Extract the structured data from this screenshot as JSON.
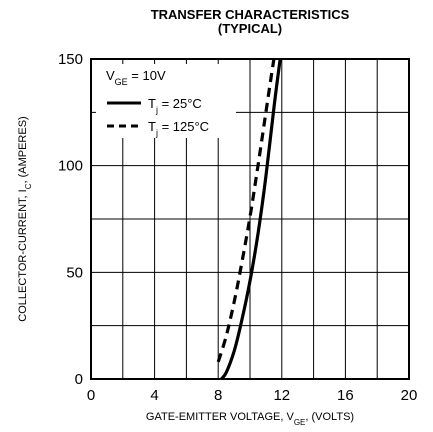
{
  "chart_data": {
    "type": "line",
    "title": "TRANSFER CHARACTERISTICS",
    "subtitle": "(TYPICAL)",
    "xlabel": {
      "pre": "GATE-EMITTER VOLTAGE, V",
      "sub": "GE",
      "post": ", (VOLTS)"
    },
    "ylabel": {
      "pre": "COLLECTOR-CURRENT, I",
      "sub": "C",
      "post": ", (AMPERES)"
    },
    "xlim": [
      0,
      20
    ],
    "ylim": [
      0,
      150
    ],
    "xticks": [
      "0",
      "4",
      "8",
      "12",
      "16",
      "20"
    ],
    "yticks": [
      "0",
      "50",
      "100",
      "150"
    ],
    "grid": true,
    "legend_position": "top-left",
    "condition": {
      "pre": "V",
      "sub": "GE",
      "post": " = 10V"
    },
    "series": [
      {
        "name": {
          "pre": "T",
          "sub": "j",
          "post": " = 25°C"
        },
        "style": "solid",
        "x": [
          8.2,
          8.5,
          9.0,
          9.5,
          10.0,
          10.5,
          11.0,
          11.5,
          11.9
        ],
        "y": [
          0,
          3,
          13,
          28,
          46,
          68,
          95,
          127,
          150
        ]
      },
      {
        "name": {
          "pre": "T",
          "sub": "j",
          "post": " = 125°C"
        },
        "style": "dashed",
        "x": [
          8.0,
          8.5,
          9.0,
          9.5,
          10.0,
          10.5,
          11.0,
          11.5
        ],
        "y": [
          8,
          20,
          36,
          55,
          76,
          100,
          125,
          150
        ]
      }
    ]
  }
}
